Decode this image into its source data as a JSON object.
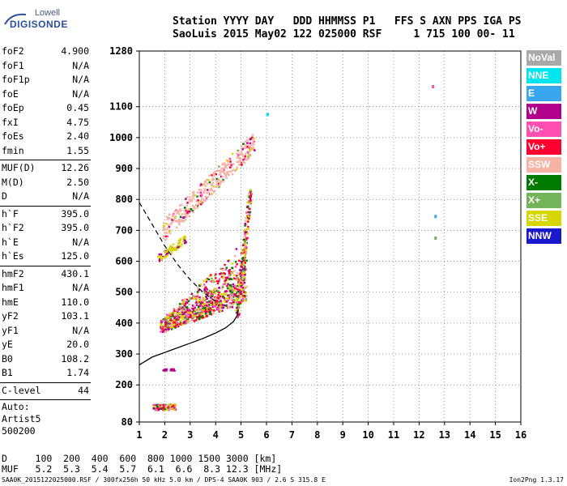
{
  "header": {
    "line1": "Station YYYY DAY   DDD HHMMSS P1   FFS S AXN PPS IGA PS",
    "line2": "SaoLuis 2015 May02 122 025000 RSF     1 715 100 00- 11"
  },
  "logo": {
    "top": "Lowell",
    "main": "DIGISONDE"
  },
  "params_group1": [
    {
      "label": "foF2",
      "value": "4.900"
    },
    {
      "label": "foF1",
      "value": "N/A"
    },
    {
      "label": "foF1p",
      "value": "N/A"
    },
    {
      "label": "foE",
      "value": "N/A"
    },
    {
      "label": "foEp",
      "value": "0.45"
    },
    {
      "label": "fxI",
      "value": "4.75"
    },
    {
      "label": "foEs",
      "value": "2.40"
    },
    {
      "label": "fmin",
      "value": "1.55"
    }
  ],
  "params_group2": [
    {
      "label": "MUF(D)",
      "value": "12.26"
    },
    {
      "label": "M(D)",
      "value": "2.50"
    },
    {
      "label": "D",
      "value": "N/A"
    }
  ],
  "params_group3": [
    {
      "label": "h`F",
      "value": "395.0"
    },
    {
      "label": "h`F2",
      "value": "395.0"
    },
    {
      "label": "h`E",
      "value": "N/A"
    },
    {
      "label": "h`Es",
      "value": "125.0"
    }
  ],
  "params_group4": [
    {
      "label": "hmF2",
      "value": "430.1"
    },
    {
      "label": "hmF1",
      "value": "N/A"
    },
    {
      "label": "hmE",
      "value": "110.0"
    },
    {
      "label": "yF2",
      "value": "103.1"
    },
    {
      "label": "yF1",
      "value": "N/A"
    },
    {
      "label": "yE",
      "value": "20.0"
    },
    {
      "label": "B0",
      "value": "108.2"
    },
    {
      "label": "B1",
      "value": "1.74"
    }
  ],
  "params_group5": [
    {
      "label": "C-level",
      "value": "44"
    }
  ],
  "auto": {
    "line1": "Auto:",
    "line2": "Artist5",
    "line3": "500200"
  },
  "legend": [
    {
      "label": "NoVal",
      "color": "#a9a9a9"
    },
    {
      "label": "NNE",
      "color": "#00e5ee"
    },
    {
      "label": "E",
      "color": "#3aa6f0"
    },
    {
      "label": "W",
      "color": "#b0008c"
    },
    {
      "label": "Vo-",
      "color": "#ff4fb0"
    },
    {
      "label": "Vo+",
      "color": "#ff0030"
    },
    {
      "label": "SSW",
      "color": "#f5b3a6"
    },
    {
      "label": "X-",
      "color": "#007a00"
    },
    {
      "label": "X+",
      "color": "#73b35a"
    },
    {
      "label": "SSE",
      "color": "#d6d600"
    },
    {
      "label": "NNW",
      "color": "#1a1acc"
    }
  ],
  "footer": {
    "line1": "D     100  200  400  600  800 1000 1500 3000 [km]",
    "line2": "MUF   5.2  5.3  5.4  5.7  6.1  6.6  8.3 12.3 [MHz]",
    "line3": "SAA0K_2015122025000.RSF / 300fx256h 50 kHz 5.0 km / DPS-4 SAA0K 903 / 2.6 S 315.8 E",
    "version": "Ion2Png 1.3.17"
  },
  "chart_data": {
    "type": "scatter",
    "xlabel": "",
    "ylabel": "",
    "xlim": [
      1,
      16
    ],
    "ylim": [
      80,
      1280
    ],
    "x_ticks": [
      1,
      2,
      3,
      4,
      5,
      6,
      7,
      8,
      9,
      10,
      11,
      12,
      13,
      14,
      15,
      16
    ],
    "y_ticks": [
      80,
      200,
      300,
      400,
      500,
      600,
      700,
      800,
      900,
      1000,
      1100,
      1280
    ],
    "grid": true,
    "profile_curve": [
      [
        1.0,
        265
      ],
      [
        1.5,
        290
      ],
      [
        2.0,
        305
      ],
      [
        2.5,
        320
      ],
      [
        3.0,
        335
      ],
      [
        3.5,
        350
      ],
      [
        4.0,
        368
      ],
      [
        4.4,
        385
      ],
      [
        4.7,
        405
      ],
      [
        4.85,
        425
      ],
      [
        4.88,
        440
      ]
    ],
    "muf_line": [
      [
        1.0,
        790
      ],
      [
        1.5,
        720
      ],
      [
        2.0,
        650
      ],
      [
        2.5,
        590
      ],
      [
        3.0,
        540
      ],
      [
        3.5,
        500
      ],
      [
        4.0,
        470
      ]
    ],
    "echo_regions": [
      {
        "name": "F2 main trace",
        "x": [
          1.7,
          5.3
        ],
        "y": [
          360,
          600
        ]
      },
      {
        "name": "F2 upper trace",
        "x": [
          1.9,
          5.6
        ],
        "y": [
          600,
          1000
        ]
      },
      {
        "name": "Es trace",
        "x": [
          1.5,
          2.4
        ],
        "y": [
          120,
          140
        ]
      },
      {
        "name": "secondary trace",
        "x": [
          1.7,
          2.8
        ],
        "y": [
          600,
          680
        ]
      }
    ]
  }
}
